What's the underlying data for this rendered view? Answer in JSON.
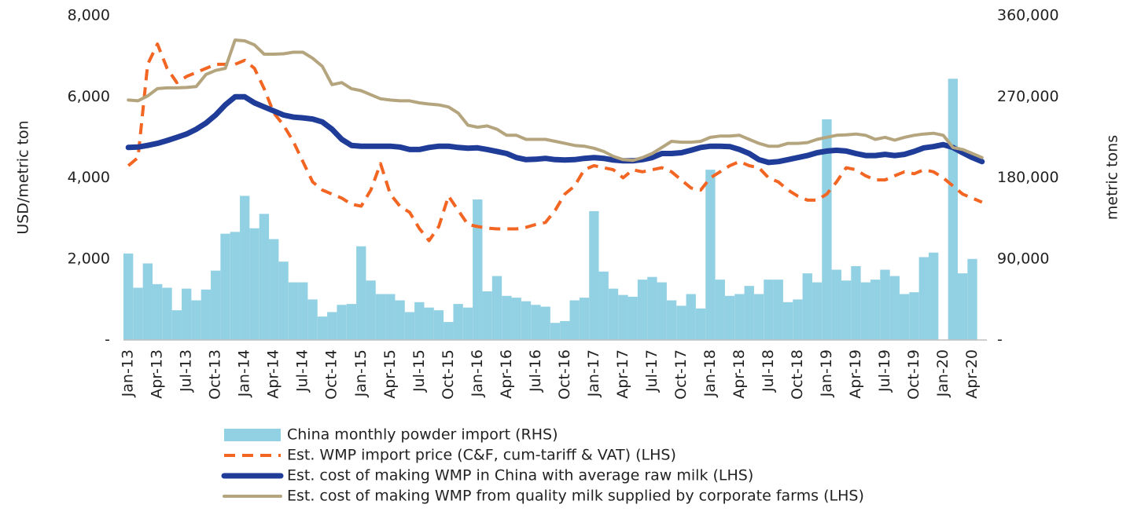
{
  "chart_data": {
    "type": "combo",
    "ylabel": "USD/metric ton",
    "y2label": "metric tons",
    "ylim": [
      0,
      8000
    ],
    "yticks": [
      {
        "value": 0,
        "label": "-"
      },
      {
        "value": 2000,
        "label": "2,000"
      },
      {
        "value": 4000,
        "label": "4,000"
      },
      {
        "value": 6000,
        "label": "6,000"
      },
      {
        "value": 8000,
        "label": "8,000"
      }
    ],
    "y2lim": [
      0,
      360000
    ],
    "y2ticks": [
      {
        "value": 0,
        "label": "-"
      },
      {
        "value": 90000,
        "label": "90,000"
      },
      {
        "value": 180000,
        "label": "180,000"
      },
      {
        "value": 270000,
        "label": "270,000"
      },
      {
        "value": 360000,
        "label": "360,000"
      }
    ],
    "categories": [
      "Jan-13",
      null,
      null,
      "Apr-13",
      null,
      null,
      "Jul-13",
      null,
      null,
      "Oct-13",
      null,
      null,
      "Jan-14",
      null,
      null,
      "Apr-14",
      null,
      null,
      "Jul-14",
      null,
      null,
      "Oct-14",
      null,
      null,
      "Jan-15",
      null,
      null,
      "Apr-15",
      null,
      null,
      "Jul-15",
      null,
      null,
      "Oct-15",
      null,
      null,
      "Jan-16",
      null,
      null,
      "Apr-16",
      null,
      null,
      "Jul-16",
      null,
      null,
      "Oct-16",
      null,
      null,
      "Jan-17",
      null,
      null,
      "Apr-17",
      null,
      null,
      "Jul-17",
      null,
      null,
      "Oct-17",
      null,
      null,
      "Jan-18",
      null,
      null,
      "Apr-18",
      null,
      null,
      "Jul-18",
      null,
      null,
      "Oct-18",
      null,
      null,
      "Jan-19",
      null,
      null,
      "Apr-19",
      null,
      null,
      "Jul-19",
      null,
      null,
      "Oct-19",
      null,
      null,
      "Jan-20",
      null,
      null,
      "Apr-20",
      null
    ],
    "series": [
      {
        "name": "China monthly powder import (RHS)",
        "type": "bar",
        "axis": "y2",
        "color": "#92d1e3",
        "values": [
          96000,
          58000,
          85000,
          62000,
          58000,
          33000,
          57000,
          44000,
          56000,
          77000,
          118000,
          120000,
          160000,
          124000,
          140000,
          112000,
          87000,
          64000,
          64000,
          45000,
          26000,
          31000,
          39000,
          40000,
          104000,
          66000,
          51000,
          51000,
          44000,
          31000,
          42000,
          36000,
          33000,
          20000,
          40000,
          36000,
          156000,
          54000,
          71000,
          49000,
          47000,
          43000,
          39000,
          37000,
          19000,
          21000,
          44000,
          47000,
          143000,
          76000,
          57000,
          50000,
          48000,
          67000,
          70000,
          64000,
          44000,
          38000,
          51000,
          35000,
          189000,
          67000,
          49000,
          51000,
          60000,
          51000,
          67000,
          67000,
          42000,
          45000,
          74000,
          64000,
          245000,
          78000,
          66000,
          82000,
          64000,
          67000,
          78000,
          71000,
          51000,
          53000,
          92000,
          97000,
          null,
          290000,
          74000,
          90000,
          null
        ]
      },
      {
        "name": "Est. WMP import price (C&F, cum-tariff & VAT) (LHS)",
        "type": "line",
        "dashed": true,
        "width": 4,
        "color": "#f26522",
        "values": [
          4300,
          4500,
          6800,
          7300,
          6700,
          6350,
          6500,
          6600,
          6700,
          6800,
          6800,
          6800,
          6900,
          6700,
          6200,
          5600,
          5300,
          4900,
          4400,
          3900,
          3700,
          3600,
          3500,
          3350,
          3300,
          3700,
          4350,
          3600,
          3300,
          3150,
          2750,
          2450,
          2800,
          3550,
          3200,
          2850,
          2800,
          2760,
          2740,
          2740,
          2740,
          2780,
          2850,
          2900,
          3200,
          3600,
          3800,
          4200,
          4300,
          4250,
          4200,
          4000,
          4200,
          4150,
          4200,
          4250,
          4150,
          3950,
          3750,
          3700,
          4000,
          4150,
          4300,
          4400,
          4300,
          4250,
          4000,
          3900,
          3700,
          3550,
          3450,
          3450,
          3600,
          3900,
          4250,
          4200,
          4050,
          3950,
          3950,
          4050,
          4150,
          4100,
          4200,
          4150,
          4000,
          3800,
          3600,
          3500,
          3400
        ]
      },
      {
        "name": "Est. cost of making WMP in China with average raw milk (LHS)",
        "type": "line",
        "dashed": false,
        "width": 7,
        "color": "#1f3c99",
        "values": [
          4750,
          4760,
          4800,
          4850,
          4920,
          5000,
          5080,
          5200,
          5350,
          5550,
          5800,
          6000,
          6000,
          5850,
          5750,
          5650,
          5550,
          5500,
          5480,
          5450,
          5380,
          5200,
          4950,
          4800,
          4780,
          4780,
          4780,
          4780,
          4760,
          4700,
          4700,
          4750,
          4780,
          4780,
          4750,
          4730,
          4740,
          4700,
          4650,
          4600,
          4500,
          4450,
          4460,
          4480,
          4450,
          4440,
          4450,
          4480,
          4500,
          4480,
          4440,
          4420,
          4420,
          4450,
          4500,
          4600,
          4600,
          4620,
          4680,
          4750,
          4780,
          4780,
          4770,
          4700,
          4600,
          4450,
          4380,
          4400,
          4450,
          4500,
          4550,
          4620,
          4660,
          4680,
          4660,
          4600,
          4550,
          4550,
          4580,
          4550,
          4580,
          4650,
          4740,
          4770,
          4820,
          4750,
          4620,
          4500,
          4400
        ]
      },
      {
        "name": "Est. cost of making WMP from quality milk supplied by corporate farms (LHS)",
        "type": "line",
        "dashed": false,
        "width": 4,
        "color": "#b5a57e",
        "values": [
          5920,
          5900,
          6020,
          6200,
          6220,
          6220,
          6230,
          6250,
          6550,
          6650,
          6700,
          7400,
          7380,
          7280,
          7050,
          7050,
          7060,
          7100,
          7100,
          6950,
          6750,
          6300,
          6350,
          6200,
          6150,
          6050,
          5950,
          5920,
          5900,
          5900,
          5850,
          5820,
          5800,
          5750,
          5600,
          5300,
          5250,
          5280,
          5200,
          5050,
          5050,
          4950,
          4950,
          4950,
          4900,
          4850,
          4800,
          4780,
          4730,
          4650,
          4530,
          4450,
          4430,
          4500,
          4600,
          4750,
          4900,
          4880,
          4880,
          4900,
          5000,
          5030,
          5030,
          5050,
          4950,
          4850,
          4780,
          4780,
          4850,
          4850,
          4870,
          4950,
          5000,
          5050,
          5060,
          5080,
          5050,
          4950,
          5000,
          4930,
          5000,
          5050,
          5080,
          5100,
          5050,
          4750,
          4700,
          4600,
          4500
        ]
      }
    ]
  }
}
